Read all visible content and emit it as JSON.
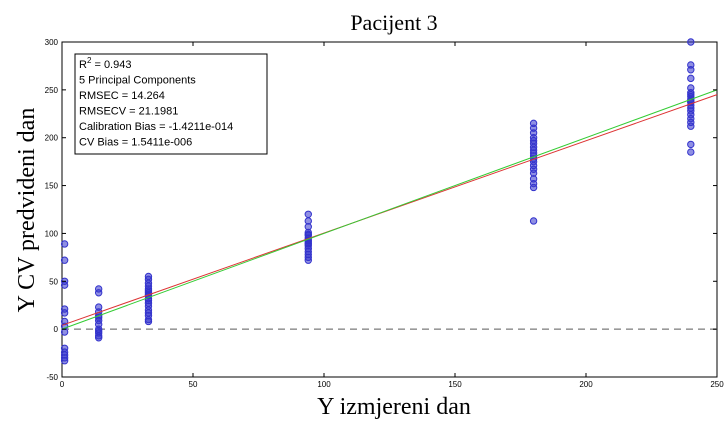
{
  "chart_data": {
    "type": "scatter",
    "title": "Pacijent 3",
    "xlabel": "Y izmjereni dan",
    "ylabel": "Y CV predvideni dan",
    "xlim": [
      0,
      250
    ],
    "ylim": [
      -50,
      300
    ],
    "xticks": [
      0,
      50,
      100,
      150,
      200,
      250
    ],
    "yticks": [
      -50,
      0,
      50,
      100,
      150,
      200,
      250,
      300
    ],
    "grid": false,
    "stats_box": {
      "lines": [
        {
          "prefix": "R",
          "sup": "2",
          "suffix": " = 0.943"
        },
        {
          "prefix": "5 Principal Components",
          "sup": "",
          "suffix": ""
        },
        {
          "prefix": "RMSEC = 14.264",
          "sup": "",
          "suffix": ""
        },
        {
          "prefix": "RMSECV = 21.1981",
          "sup": "",
          "suffix": ""
        },
        {
          "prefix": "Calibration Bias = -1.4211e-014",
          "sup": "",
          "suffix": ""
        },
        {
          "prefix": "CV Bias = 1.5411e-006",
          "sup": "",
          "suffix": ""
        }
      ]
    },
    "points": {
      "color": "#3333cc",
      "x": [
        1,
        1,
        1,
        1,
        1,
        1,
        1,
        1,
        1,
        1,
        1,
        1,
        1,
        1,
        14,
        14,
        14,
        14,
        14,
        14,
        14,
        14,
        14,
        14,
        14,
        14,
        14,
        33,
        33,
        33,
        33,
        33,
        33,
        33,
        33,
        33,
        33,
        33,
        33,
        33,
        33,
        33,
        33,
        33,
        33,
        94,
        94,
        94,
        94,
        94,
        94,
        94,
        94,
        94,
        94,
        94,
        94,
        94,
        94,
        94,
        94,
        94,
        180,
        180,
        180,
        180,
        180,
        180,
        180,
        180,
        180,
        180,
        180,
        180,
        180,
        180,
        180,
        180,
        180,
        180,
        180,
        240,
        240,
        240,
        240,
        240,
        240,
        240,
        240,
        240,
        240,
        240,
        240,
        240,
        240,
        240,
        240,
        240,
        240,
        240,
        240
      ],
      "y": [
        89,
        72,
        50,
        46,
        21,
        17,
        8,
        3,
        -3,
        -20,
        -24,
        -27,
        -30,
        -33,
        42,
        38,
        23,
        18,
        14,
        9,
        5,
        0,
        -2,
        -4,
        -7,
        -9,
        12,
        55,
        52,
        48,
        45,
        42,
        38,
        35,
        32,
        30,
        27,
        24,
        20,
        17,
        14,
        10,
        8,
        36,
        40,
        120,
        113,
        107,
        101,
        98,
        95,
        92,
        89,
        87,
        84,
        81,
        78,
        75,
        72,
        90,
        93,
        99,
        215,
        210,
        205,
        200,
        197,
        194,
        190,
        187,
        184,
        181,
        178,
        175,
        171,
        167,
        163,
        157,
        152,
        148,
        113,
        300,
        276,
        271,
        262,
        252,
        247,
        243,
        240,
        237,
        234,
        231,
        228,
        224,
        220,
        216,
        212,
        193,
        185,
        245,
        238
      ]
    },
    "lines": [
      {
        "name": "fit",
        "color": "#dd3333",
        "x": [
          0,
          250
        ],
        "y": [
          4,
          245
        ]
      },
      {
        "name": "target",
        "color": "#33cc33",
        "x": [
          0,
          250
        ],
        "y": [
          0,
          250
        ]
      },
      {
        "name": "zero",
        "color": "#999999",
        "dashed": true,
        "x": [
          0,
          250
        ],
        "y": [
          0,
          0
        ]
      }
    ]
  }
}
